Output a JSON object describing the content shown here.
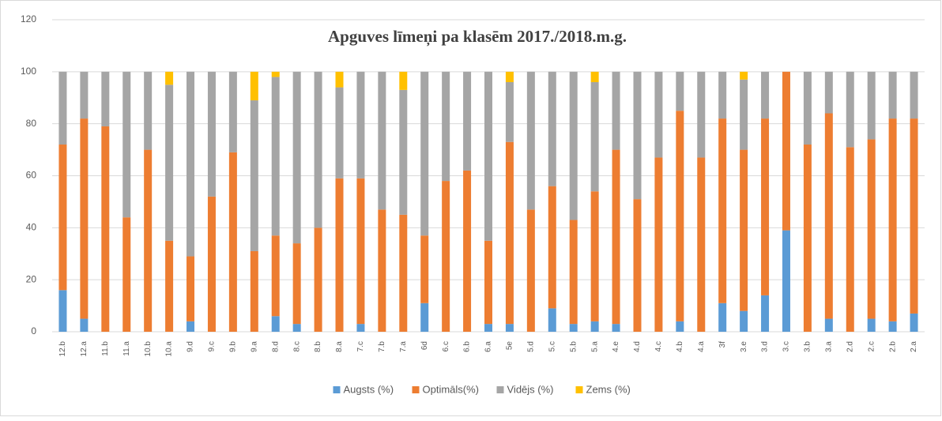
{
  "chart_data": {
    "type": "stacked_bar",
    "title": "Apguves līmeņi pa klasēm 2017./2018.m.g.",
    "categories": [
      "12.b",
      "12.a",
      "11.b",
      "11.a",
      "10.b",
      "10.a",
      "9.d",
      "9.c",
      "9.b",
      "9.a",
      "8.d",
      "8.c",
      "8.b",
      "8.a",
      "7.c",
      "7.b",
      "7.a",
      "6d",
      "6.c",
      "6.b",
      "6.a",
      "5e",
      "5.d",
      "5.c",
      "5.b",
      "5.a",
      "4.e",
      "4.d",
      "4.c",
      "4.b",
      "4.a",
      "3f",
      "3.e",
      "3.d",
      "3.c",
      "3.b",
      "3.a",
      "2.d",
      "2.c",
      "2.b",
      "2.a"
    ],
    "series": [
      {
        "name": "Augsts (%)",
        "color": "#5b9bd5",
        "values": [
          16,
          5,
          0,
          0,
          0,
          0,
          4,
          0,
          0,
          0,
          6,
          3,
          0,
          0,
          3,
          0,
          0,
          11,
          0,
          0,
          3,
          3,
          0,
          9,
          3,
          4,
          3,
          0,
          0,
          4,
          0,
          11,
          8,
          14,
          39,
          0,
          5,
          0,
          5,
          4,
          7
        ]
      },
      {
        "name": "Optimāls(%)",
        "color": "#ed7d31",
        "values": [
          56,
          77,
          79,
          44,
          70,
          35,
          25,
          52,
          69,
          31,
          31,
          31,
          40,
          59,
          56,
          47,
          45,
          26,
          58,
          62,
          32,
          70,
          47,
          47,
          40,
          50,
          67,
          51,
          67,
          81,
          67,
          71,
          62,
          68,
          61,
          72,
          79,
          71,
          69,
          78,
          75
        ]
      },
      {
        "name": "Vidējs (%)",
        "color": "#a5a5a5",
        "values": [
          28,
          18,
          21,
          56,
          30,
          60,
          71,
          48,
          31,
          58,
          61,
          66,
          60,
          35,
          41,
          53,
          48,
          63,
          42,
          38,
          65,
          23,
          53,
          44,
          57,
          42,
          30,
          49,
          33,
          15,
          33,
          18,
          27,
          18,
          0,
          28,
          16,
          29,
          26,
          18,
          18
        ]
      },
      {
        "name": "Zems (%)",
        "color": "#ffc000",
        "values": [
          0,
          0,
          0,
          0,
          0,
          5,
          0,
          0,
          0,
          11,
          2,
          0,
          0,
          6,
          0,
          0,
          7,
          0,
          0,
          0,
          0,
          4,
          0,
          0,
          0,
          4,
          0,
          0,
          0,
          0,
          0,
          0,
          3,
          0,
          0,
          0,
          0,
          0,
          0,
          0,
          0
        ]
      }
    ],
    "ylim": [
      0,
      120
    ],
    "yticks": [
      0,
      20,
      40,
      60,
      80,
      100,
      120
    ],
    "grid": true,
    "legend": "bottom"
  }
}
